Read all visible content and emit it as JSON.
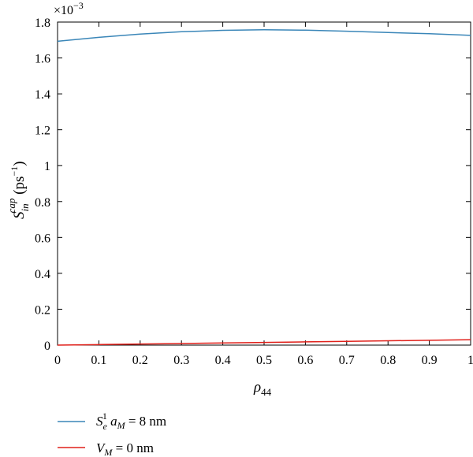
{
  "chart_data": {
    "type": "line",
    "xlabel": "ρ44",
    "ylabel": "S_in^cap (ps^-1)",
    "y_multiplier": "×10^-3",
    "xlim": [
      0,
      1
    ],
    "ylim": [
      0,
      1.8
    ],
    "x_ticks": [
      "0",
      "0.1",
      "0.2",
      "0.3",
      "0.4",
      "0.5",
      "0.6",
      "0.7",
      "0.8",
      "0.9",
      "1"
    ],
    "y_ticks": [
      "0",
      "0.2",
      "0.4",
      "0.6",
      "0.8",
      "1",
      "1.2",
      "1.4",
      "1.6",
      "1.8"
    ],
    "grid": false,
    "legend_position": "bottom-left, below plot",
    "x": [
      0,
      0.1,
      0.2,
      0.3,
      0.4,
      0.5,
      0.6,
      0.7,
      0.8,
      0.9,
      1.0
    ],
    "series": [
      {
        "name": "S_e^1 a_M = 8 nm",
        "color": "#3a86b8",
        "values": [
          1.693,
          1.715,
          1.733,
          1.746,
          1.754,
          1.757,
          1.755,
          1.749,
          1.742,
          1.735,
          1.726
        ]
      },
      {
        "name": "V_M = 0 nm",
        "color": "#e0201a",
        "values": [
          0.0,
          0.003,
          0.006,
          0.009,
          0.012,
          0.015,
          0.018,
          0.021,
          0.024,
          0.027,
          0.03
        ]
      }
    ]
  }
}
